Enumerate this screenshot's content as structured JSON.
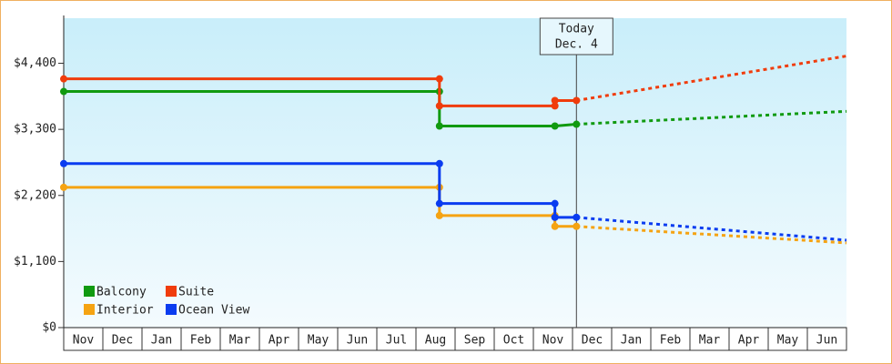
{
  "chart_data": {
    "type": "line",
    "categories": [
      "Nov",
      "Dec",
      "Jan",
      "Feb",
      "Mar",
      "Apr",
      "May",
      "Jun",
      "Jul",
      "Aug",
      "Sep",
      "Oct",
      "Nov",
      "Dec",
      "Jan",
      "Feb",
      "Mar",
      "Apr",
      "May",
      "Jun"
    ],
    "xlim": [
      0,
      20
    ],
    "ylim": [
      0,
      5150
    ],
    "yticks": [
      {
        "value": 0,
        "label": "$0"
      },
      {
        "value": 1100,
        "label": "$1,100"
      },
      {
        "value": 2200,
        "label": "$2,200"
      },
      {
        "value": 3300,
        "label": "$3,300"
      },
      {
        "value": 4400,
        "label": "$4,400"
      }
    ],
    "today": {
      "x": 13.1,
      "label": [
        "Today",
        "Dec. 4"
      ]
    },
    "legend": "lower left",
    "series": [
      {
        "name": "Balcony",
        "color": "#109a10",
        "x": [
          0,
          9.6,
          9.6,
          12.55,
          13.1
        ],
        "values": [
          3930,
          3930,
          3355,
          3355,
          3385
        ],
        "forecast_x": [
          13.1,
          20
        ],
        "forecast_values": [
          3385,
          3600
        ]
      },
      {
        "name": "Suite",
        "color": "#f03c0c",
        "x": [
          0,
          9.6,
          9.6,
          12.55,
          12.55,
          13.1
        ],
        "values": [
          4140,
          4140,
          3690,
          3690,
          3780,
          3780
        ],
        "forecast_x": [
          13.1,
          20
        ],
        "forecast_values": [
          3780,
          4520
        ]
      },
      {
        "name": "Interior",
        "color": "#f5a312",
        "x": [
          0,
          9.6,
          9.6,
          12.55,
          12.55,
          13.1
        ],
        "values": [
          2335,
          2335,
          1865,
          1865,
          1685,
          1685
        ],
        "forecast_x": [
          13.1,
          20
        ],
        "forecast_values": [
          1685,
          1410
        ]
      },
      {
        "name": "Ocean View",
        "color": "#0a3cf0",
        "x": [
          0,
          9.6,
          9.6,
          12.55,
          12.55,
          13.1
        ],
        "values": [
          2730,
          2730,
          2065,
          2065,
          1835,
          1835
        ],
        "forecast_x": [
          13.1,
          20
        ],
        "forecast_values": [
          1835,
          1455
        ]
      }
    ]
  }
}
